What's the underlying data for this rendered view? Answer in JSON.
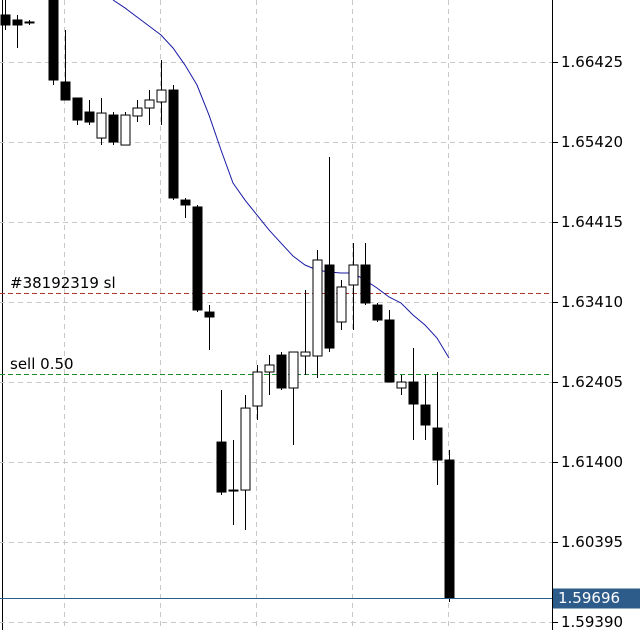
{
  "chart_data": {
    "type": "candlestick",
    "ylim": [
      1.5929,
      1.67204
    ],
    "yticks": [
      1.66425,
      {
        "value": 1.6542,
        "label": "1.65420"
      },
      1.64415,
      {
        "value": 1.6341,
        "label": "1.63410"
      },
      1.62405,
      {
        "value": 1.614,
        "label": "1.61400"
      },
      1.60395,
      {
        "value": 1.5939,
        "label": "1.59390"
      }
    ],
    "grid": true,
    "up_color": "#ffffff",
    "down_color": "#000000",
    "open": [
      1.67016,
      1.66953,
      1.66928,
      null,
      1.67204,
      1.66174,
      1.65973,
      1.65797,
      1.6547,
      1.65759,
      1.65382,
      1.65747,
      1.65847,
      1.65923,
      1.66073,
      1.64691,
      1.64604,
      1.63284,
      1.61651,
      1.61048,
      1.61048,
      1.62104,
      1.62531,
      1.62744,
      1.6233,
      1.62732,
      1.62732,
      1.63875,
      1.63159,
      1.63624,
      1.63875,
      1.63372,
      1.63184,
      1.6233,
      1.62405,
      1.62116,
      1.61827,
      1.61425
    ],
    "high": [
      1.67204,
      1.67016,
      1.66953,
      null,
      1.67204,
      1.66827,
      1.65973,
      1.65948,
      1.65973,
      1.65797,
      1.65797,
      1.65948,
      1.66073,
      1.6645,
      1.66136,
      1.64717,
      1.64629,
      1.63372,
      1.62305,
      1.61676,
      1.62242,
      1.62619,
      1.62744,
      1.62782,
      1.62782,
      1.63561,
      1.64063,
      1.65232,
      1.63686,
      1.64151,
      1.64151,
      1.63398,
      1.6331,
      1.62493,
      1.62832,
      1.62493,
      1.62531,
      1.61551
    ],
    "low": [
      1.66827,
      1.66601,
      1.6689,
      null,
      1.66136,
      1.65948,
      1.65634,
      1.65634,
      1.65382,
      1.65382,
      1.65382,
      1.65671,
      1.65634,
      1.65634,
      1.64691,
      1.64465,
      1.63284,
      1.62807,
      1.60986,
      1.60609,
      1.60546,
      1.61928,
      1.62242,
      1.62305,
      1.61614,
      1.62493,
      1.62455,
      1.62782,
      1.63058,
      1.63058,
      1.63372,
      1.63159,
      1.62405,
      1.62242,
      1.61676,
      1.61676,
      1.61111,
      1.59641
    ],
    "close": [
      1.6689,
      1.6689,
      1.66928,
      null,
      1.66199,
      1.65948,
      1.65696,
      1.65671,
      1.65784,
      1.6542,
      1.65759,
      1.65847,
      1.65948,
      1.66073,
      1.64717,
      1.64629,
      1.6331,
      1.63222,
      1.61023,
      1.61048,
      1.62078,
      1.62531,
      1.62619,
      1.6233,
      1.62782,
      1.62782,
      1.63938,
      1.62832,
      1.63599,
      1.63875,
      1.63398,
      1.63184,
      1.62405,
      1.62405,
      1.62129,
      1.61865,
      1.61425,
      1.59696
    ],
    "moving_average": {
      "color": "#1a1aa6",
      "values": [
        null,
        null,
        null,
        null,
        null,
        null,
        null,
        null,
        null,
        1.67204,
        1.67104,
        1.6699,
        1.66877,
        1.66764,
        1.66601,
        1.66387,
        1.66136,
        1.65759,
        1.6532,
        1.64905,
        1.64691,
        1.64503,
        1.64315,
        1.64151,
        1.63988,
        1.63875,
        1.63812,
        1.63787,
        1.63774,
        1.63774,
        1.63686,
        1.63586,
        1.63473,
        1.63398,
        1.63247,
        1.63121,
        1.62958,
        1.62707
      ]
    },
    "levels": [
      {
        "label": "#38192319 sl",
        "value": 1.63523,
        "color": "#b03a2e"
      },
      {
        "label": "sell 0.50",
        "value": 1.62506,
        "color": "#1e8c2e"
      }
    ],
    "current_price": {
      "value": 1.59696,
      "color": "#2e5c8a"
    }
  }
}
